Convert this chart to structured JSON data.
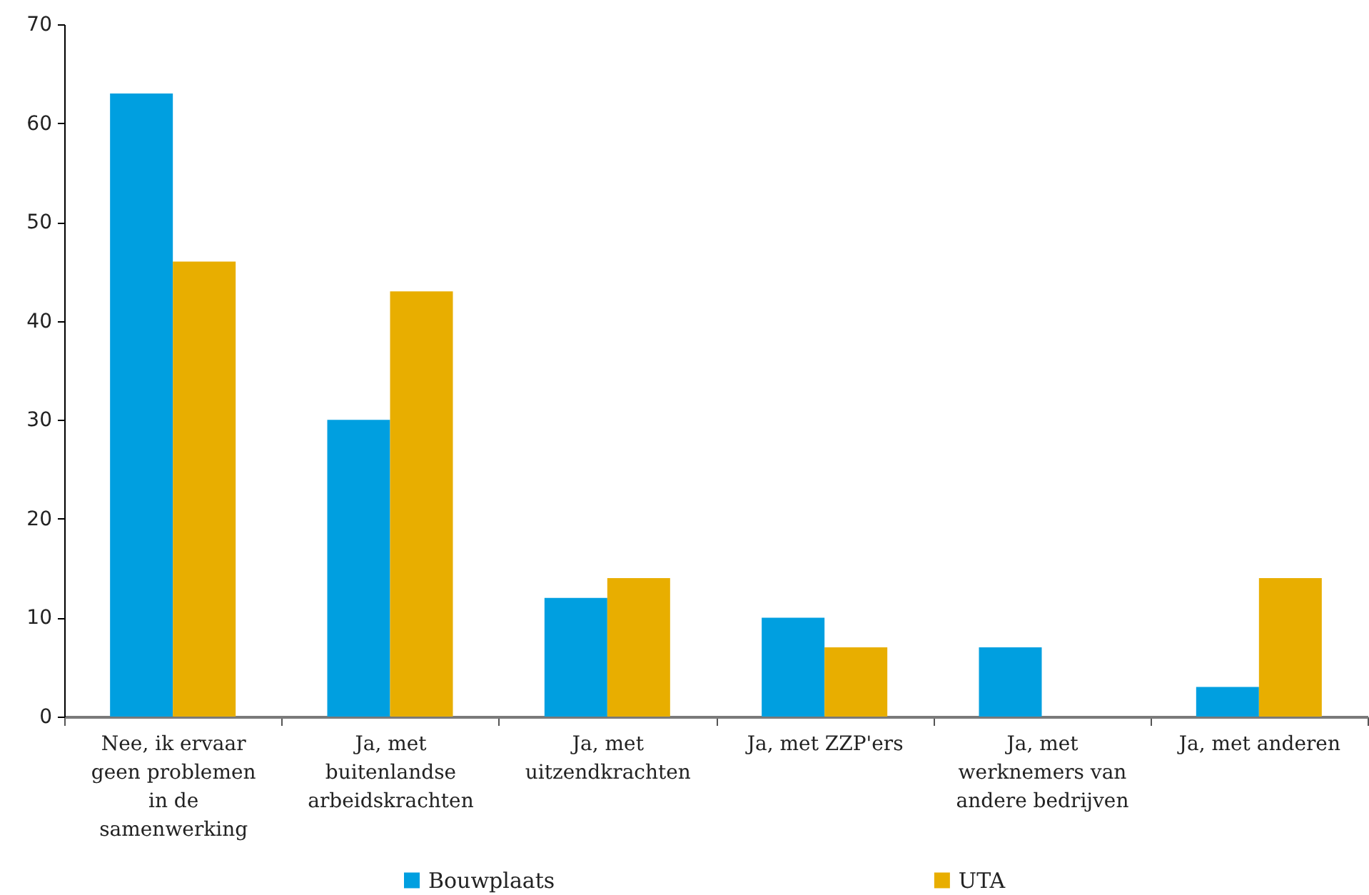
{
  "chart_data": {
    "type": "bar",
    "categories": [
      "Nee, ik ervaar geen problemen in de samenwerking",
      "Ja, met buitenlandse arbeidskrachten",
      "Ja, met uitzendkrachten",
      "Ja, met ZZP'ers",
      "Ja, met werknemers van andere bedrijven",
      "Ja, met anderen"
    ],
    "series": [
      {
        "name": "Bouwplaats",
        "color": "#009fe0",
        "values": [
          63,
          30,
          12,
          10,
          7,
          3
        ]
      },
      {
        "name": "UTA",
        "color": "#e8ae00",
        "values": [
          46,
          43,
          14,
          7,
          null,
          14
        ]
      }
    ],
    "ylim": [
      0,
      70
    ],
    "yticks": [
      0,
      10,
      20,
      30,
      40,
      50,
      60,
      70
    ],
    "grid": false,
    "legend": "bottom"
  }
}
